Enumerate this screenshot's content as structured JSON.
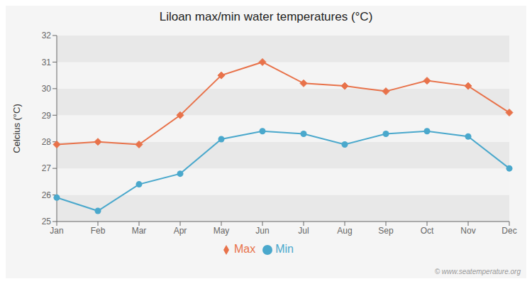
{
  "chart_data": {
    "type": "line",
    "title": "Liloan max/min water temperatures (°C)",
    "y_label": "Celcius (°C)",
    "categories": [
      "Jan",
      "Feb",
      "Mar",
      "Apr",
      "May",
      "Jun",
      "Jul",
      "Aug",
      "Sep",
      "Oct",
      "Nov",
      "Dec"
    ],
    "series": [
      {
        "name": "Max",
        "color": "#e8724a",
        "marker": "diamond",
        "values": [
          27.9,
          28.0,
          27.9,
          29.0,
          30.5,
          31.0,
          30.2,
          30.1,
          29.9,
          30.3,
          30.1,
          29.1
        ]
      },
      {
        "name": "Min",
        "color": "#4aa8cc",
        "marker": "circle",
        "values": [
          25.9,
          25.4,
          26.4,
          26.8,
          28.1,
          28.4,
          28.3,
          27.9,
          28.3,
          28.4,
          28.2,
          27.0
        ]
      }
    ],
    "ylim": [
      25,
      32
    ],
    "yticks": [
      25,
      26,
      27,
      28,
      29,
      30,
      31,
      32
    ],
    "legend": "bottom",
    "annotations": [
      "© www.seatemperature.org"
    ]
  }
}
